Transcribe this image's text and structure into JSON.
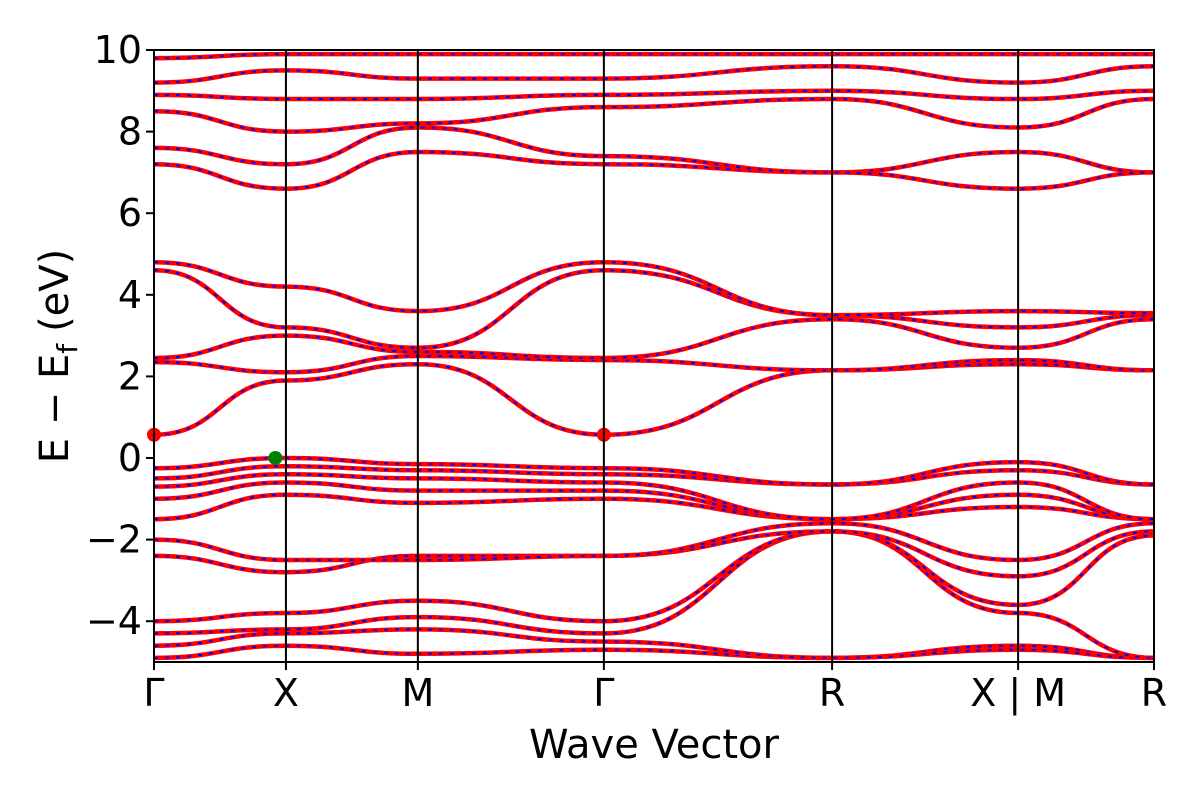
{
  "chart_data": {
    "type": "line",
    "title": "",
    "xlabel": "Wave Vector",
    "ylabel": "E − E",
    "ylabel_subscript": "f",
    "ylabel_unit": "(eV)",
    "ylim": [
      -5,
      10
    ],
    "yticks": [
      10,
      8,
      6,
      4,
      2,
      0,
      -2,
      -4
    ],
    "ytick_labels": [
      "10",
      "8",
      "6",
      "4",
      "2",
      "0",
      "−2",
      "−4"
    ],
    "xlim": [
      0,
      7.58
    ],
    "xticks": [
      {
        "x": 0.0,
        "label": "Γ"
      },
      {
        "x": 1.0,
        "label": "X"
      },
      {
        "x": 2.0,
        "label": "M"
      },
      {
        "x": 3.41,
        "label": "Γ"
      },
      {
        "x": 5.14,
        "label": "R"
      },
      {
        "x": 6.55,
        "label": "X | M"
      },
      {
        "x": 7.58,
        "label": "R"
      }
    ],
    "line_colors": {
      "band": "#ff0000",
      "overlay": "#0000ff"
    },
    "markers": [
      {
        "name": "CBM",
        "x": 0.0,
        "y": 0.57,
        "color": "#ff0000"
      },
      {
        "name": "CBM",
        "x": 3.41,
        "y": 0.57,
        "color": "#ff0000"
      },
      {
        "name": "VBM",
        "x": 0.92,
        "y": 0.0,
        "color": "#008000"
      }
    ],
    "series": [
      {
        "values": [
          [
            0,
            -4.9
          ],
          [
            1,
            -4.6
          ],
          [
            2,
            -4.8
          ],
          [
            3.41,
            -4.7
          ],
          [
            5.14,
            -4.9
          ],
          [
            6.55,
            -4.6
          ],
          [
            7.58,
            -4.9
          ]
        ]
      },
      {
        "values": [
          [
            0,
            -4.6
          ],
          [
            1,
            -4.3
          ],
          [
            2,
            -4.2
          ],
          [
            3.41,
            -4.5
          ],
          [
            5.14,
            -4.9
          ],
          [
            6.55,
            -4.7
          ],
          [
            7.58,
            -4.9
          ]
        ]
      },
      {
        "values": [
          [
            0,
            -4.3
          ],
          [
            1,
            -4.2
          ],
          [
            2,
            -3.9
          ],
          [
            3.41,
            -4.3
          ],
          [
            5.14,
            -1.8
          ],
          [
            6.55,
            -3.8
          ],
          [
            7.58,
            -4.9
          ]
        ]
      },
      {
        "values": [
          [
            0,
            -4.0
          ],
          [
            1,
            -3.8
          ],
          [
            2,
            -3.5
          ],
          [
            3.41,
            -4.0
          ],
          [
            5.14,
            -1.8
          ],
          [
            6.55,
            -3.6
          ],
          [
            7.58,
            -1.9
          ]
        ]
      },
      {
        "values": [
          [
            0,
            -2.4
          ],
          [
            1,
            -2.8
          ],
          [
            2,
            -2.4
          ],
          [
            3.41,
            -2.4
          ],
          [
            5.14,
            -1.8
          ],
          [
            6.55,
            -2.9
          ],
          [
            7.58,
            -1.8
          ]
        ]
      },
      {
        "values": [
          [
            0,
            -2.0
          ],
          [
            1,
            -2.5
          ],
          [
            2,
            -2.5
          ],
          [
            3.41,
            -2.4
          ],
          [
            5.14,
            -1.6
          ],
          [
            6.55,
            -2.5
          ],
          [
            7.58,
            -1.6
          ]
        ]
      },
      {
        "values": [
          [
            0,
            -1.5
          ],
          [
            1,
            -0.9
          ],
          [
            2,
            -1.1
          ],
          [
            3.41,
            -1.0
          ],
          [
            5.14,
            -1.5
          ],
          [
            6.55,
            -1.2
          ],
          [
            7.58,
            -1.5
          ]
        ]
      },
      {
        "values": [
          [
            0,
            -1.0
          ],
          [
            1,
            -0.6
          ],
          [
            2,
            -0.8
          ],
          [
            3.41,
            -0.8
          ],
          [
            5.14,
            -1.5
          ],
          [
            6.55,
            -0.9
          ],
          [
            7.58,
            -1.5
          ]
        ]
      },
      {
        "values": [
          [
            0,
            -0.7
          ],
          [
            1,
            -0.4
          ],
          [
            2,
            -0.5
          ],
          [
            3.41,
            -0.6
          ],
          [
            5.14,
            -1.5
          ],
          [
            6.55,
            -0.6
          ],
          [
            7.58,
            -1.5
          ]
        ]
      },
      {
        "values": [
          [
            0,
            -0.5
          ],
          [
            1,
            -0.2
          ],
          [
            2,
            -0.3
          ],
          [
            3.41,
            -0.4
          ],
          [
            5.14,
            -0.65
          ],
          [
            6.55,
            -0.3
          ],
          [
            7.58,
            -0.65
          ]
        ]
      },
      {
        "values": [
          [
            0,
            -0.25
          ],
          [
            1,
            0.0
          ],
          [
            2,
            -0.15
          ],
          [
            3.41,
            -0.25
          ],
          [
            5.14,
            -0.65
          ],
          [
            6.55,
            -0.1
          ],
          [
            7.58,
            -0.65
          ]
        ]
      },
      {
        "values": [
          [
            0,
            0.57
          ],
          [
            1,
            1.9
          ],
          [
            2,
            2.3
          ],
          [
            3.41,
            0.57
          ],
          [
            5.14,
            2.15
          ],
          [
            6.55,
            2.3
          ],
          [
            7.58,
            2.15
          ]
        ]
      },
      {
        "values": [
          [
            0,
            2.35
          ],
          [
            1,
            2.1
          ],
          [
            2,
            2.5
          ],
          [
            3.41,
            2.4
          ],
          [
            5.14,
            2.15
          ],
          [
            6.55,
            2.4
          ],
          [
            7.58,
            2.15
          ]
        ]
      },
      {
        "values": [
          [
            0,
            2.45
          ],
          [
            1,
            3.0
          ],
          [
            2,
            2.6
          ],
          [
            3.41,
            2.45
          ],
          [
            5.14,
            3.4
          ],
          [
            6.55,
            2.7
          ],
          [
            7.58,
            3.4
          ]
        ]
      },
      {
        "values": [
          [
            0,
            4.6
          ],
          [
            1,
            3.2
          ],
          [
            2,
            2.7
          ],
          [
            3.41,
            4.6
          ],
          [
            5.14,
            3.5
          ],
          [
            6.55,
            3.2
          ],
          [
            7.58,
            3.5
          ]
        ]
      },
      {
        "values": [
          [
            0,
            4.8
          ],
          [
            1,
            4.2
          ],
          [
            2,
            3.6
          ],
          [
            3.41,
            4.8
          ],
          [
            5.14,
            3.5
          ],
          [
            6.55,
            3.6
          ],
          [
            7.58,
            3.55
          ]
        ]
      },
      {
        "values": [
          [
            0,
            7.2
          ],
          [
            1,
            6.6
          ],
          [
            2,
            7.5
          ],
          [
            3.41,
            7.2
          ],
          [
            5.14,
            7.0
          ],
          [
            6.55,
            7.5
          ],
          [
            7.58,
            7.0
          ]
        ]
      },
      {
        "values": [
          [
            0,
            7.6
          ],
          [
            1,
            7.2
          ],
          [
            2,
            8.1
          ],
          [
            3.41,
            7.4
          ],
          [
            5.14,
            7.0
          ],
          [
            6.55,
            6.6
          ],
          [
            7.58,
            7.0
          ]
        ]
      },
      {
        "values": [
          [
            0,
            8.5
          ],
          [
            1,
            8.0
          ],
          [
            2,
            8.2
          ],
          [
            3.41,
            8.6
          ],
          [
            5.14,
            8.8
          ],
          [
            6.55,
            8.1
          ],
          [
            7.58,
            8.8
          ]
        ]
      },
      {
        "values": [
          [
            0,
            8.9
          ],
          [
            1,
            8.8
          ],
          [
            2,
            8.8
          ],
          [
            3.41,
            8.9
          ],
          [
            5.14,
            9.0
          ],
          [
            6.55,
            8.8
          ],
          [
            7.58,
            9.0
          ]
        ]
      },
      {
        "values": [
          [
            0,
            9.2
          ],
          [
            1,
            9.5
          ],
          [
            2,
            9.3
          ],
          [
            3.41,
            9.3
          ],
          [
            5.14,
            9.6
          ],
          [
            6.55,
            9.2
          ],
          [
            7.58,
            9.6
          ]
        ]
      },
      {
        "values": [
          [
            0,
            9.8
          ],
          [
            1,
            9.9
          ],
          [
            2,
            9.9
          ],
          [
            3.41,
            9.9
          ],
          [
            5.14,
            9.9
          ],
          [
            6.55,
            9.9
          ],
          [
            7.58,
            9.9
          ]
        ]
      }
    ]
  }
}
